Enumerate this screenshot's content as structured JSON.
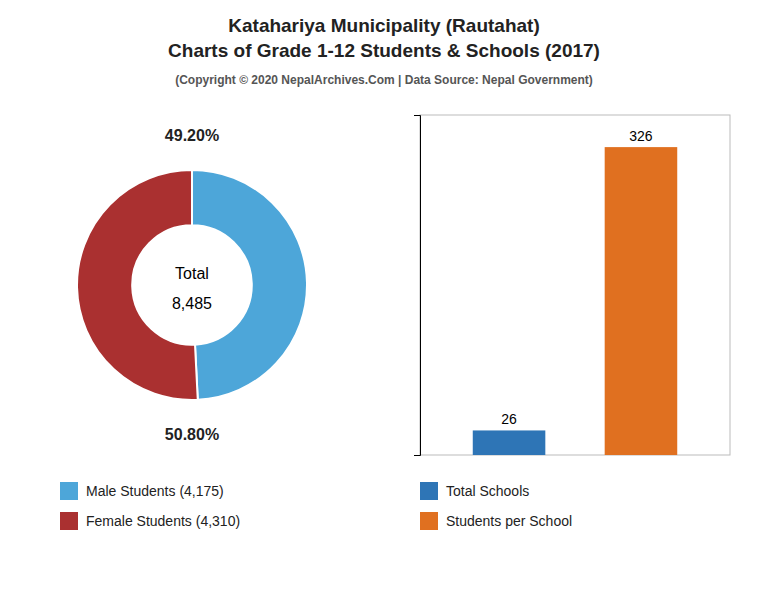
{
  "chart_data": [
    {
      "type": "pie",
      "title": [
        "Katahariya Municipality (Rautahat)",
        "Charts of Grade 1-12 Students & Schools (2017)"
      ],
      "subtitle": "(Copyright © 2020 NepalArchives.Com | Data Source: Nepal Government)",
      "categories": [
        "Male Students (4,175)",
        "Female Students (4,310)"
      ],
      "values": [
        49.2,
        50.8
      ],
      "value_labels": [
        "49.20%",
        "50.80%"
      ],
      "data_labels": true,
      "colors": [
        "#4da6d9",
        "#aa3030"
      ],
      "annotations": [
        "Total",
        "8,485"
      ],
      "legend": "bottom"
    },
    {
      "type": "bar",
      "categories": [
        "Total Schools",
        "Students per School"
      ],
      "values": [
        26,
        326
      ],
      "colors": [
        "#2e75b6",
        "#e07020"
      ],
      "ylim": [
        0,
        360
      ],
      "yticks": [],
      "tick_labels": false,
      "data_labels": true,
      "legend": "bottom"
    }
  ]
}
